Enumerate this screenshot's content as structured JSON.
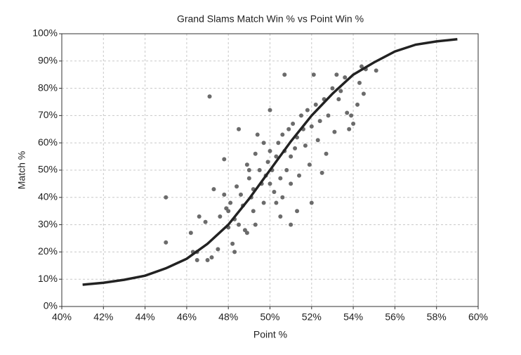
{
  "chart_data": {
    "type": "scatter",
    "title": "Grand Slams Match Win % vs Point Win %",
    "xlabel": "Point %",
    "ylabel": "Match %",
    "xlim": [
      40,
      60
    ],
    "ylim": [
      0,
      100
    ],
    "grid": true,
    "xticks": [
      {
        "value": 40,
        "label": "40%"
      },
      {
        "value": 42,
        "label": "42%"
      },
      {
        "value": 44,
        "label": "44%"
      },
      {
        "value": 46,
        "label": "46%"
      },
      {
        "value": 48,
        "label": "48%"
      },
      {
        "value": 50,
        "label": "50%"
      },
      {
        "value": 52,
        "label": "52%"
      },
      {
        "value": 54,
        "label": "54%"
      },
      {
        "value": 56,
        "label": "56%"
      },
      {
        "value": 58,
        "label": "58%"
      },
      {
        "value": 60,
        "label": "60%"
      }
    ],
    "yticks": [
      {
        "value": 0,
        "label": "0%"
      },
      {
        "value": 10,
        "label": "10%"
      },
      {
        "value": 20,
        "label": "20%"
      },
      {
        "value": 30,
        "label": "30%"
      },
      {
        "value": 40,
        "label": "40%"
      },
      {
        "value": 50,
        "label": "50%"
      },
      {
        "value": 60,
        "label": "60%"
      },
      {
        "value": 70,
        "label": "70%"
      },
      {
        "value": 80,
        "label": "80%"
      },
      {
        "value": 90,
        "label": "90%"
      },
      {
        "value": 100,
        "label": "100%"
      }
    ],
    "series": [
      {
        "type": "scatter",
        "color": "#6b6b6b",
        "x": [
          45,
          45,
          46.2,
          46.3,
          46.5,
          46.5,
          46.6,
          46.9,
          47,
          47.1,
          47.2,
          47.3,
          47.5,
          47.6,
          47.8,
          47.8,
          47.9,
          48,
          48,
          48.1,
          48.2,
          48.3,
          48.3,
          48.4,
          48.5,
          48.5,
          48.6,
          48.7,
          48.8,
          48.9,
          49,
          49,
          49.1,
          49.2,
          49.3,
          49.3,
          49.4,
          49.5,
          49.6,
          49.7,
          49.8,
          49.9,
          50,
          50,
          50,
          50.1,
          50.2,
          50.3,
          50.3,
          50.4,
          50.5,
          50.5,
          50.6,
          50.7,
          50.7,
          50.8,
          50.9,
          51,
          51,
          51,
          51.1,
          51.2,
          51.3,
          51.4,
          51.5,
          51.6,
          51.7,
          51.8,
          51.9,
          52,
          52.1,
          52.2,
          52.3,
          52.4,
          52.5,
          52.6,
          52.7,
          52.8,
          53,
          53.1,
          53.2,
          53.3,
          53.4,
          53.6,
          53.7,
          53.8,
          53.9,
          54,
          54.2,
          54.3,
          54.4,
          54.5,
          54.6,
          55.1,
          52,
          51.3,
          50.6,
          49.7,
          48.9,
          49.2
        ],
        "values": [
          40,
          23.5,
          27,
          20,
          20,
          17,
          33,
          31,
          17,
          77,
          18,
          43,
          21,
          33,
          54,
          41,
          36,
          35,
          29,
          38,
          23,
          20,
          32,
          44,
          65,
          30,
          41,
          37,
          28,
          27,
          47,
          50,
          40,
          43,
          56,
          30,
          63,
          50,
          45,
          38,
          48,
          53,
          72,
          57,
          45,
          50,
          42,
          55,
          38,
          60,
          33,
          47,
          63,
          85,
          57,
          50,
          65,
          30,
          55,
          45,
          67,
          58,
          62,
          48,
          70,
          65,
          59,
          72,
          52,
          66,
          85,
          74,
          61,
          68,
          49,
          76,
          56,
          70,
          80,
          64,
          85,
          76,
          79,
          84,
          71,
          65,
          70,
          67,
          74,
          82,
          88,
          78,
          87,
          86.5,
          38,
          35,
          40,
          60,
          52,
          35
        ]
      },
      {
        "type": "line",
        "color": "#222222",
        "x": [
          41,
          42,
          43,
          44,
          45,
          46,
          47,
          48,
          49,
          50,
          51,
          52,
          53,
          54,
          55,
          56,
          57,
          58,
          59
        ],
        "values": [
          8,
          8.7,
          9.8,
          11.3,
          14,
          17.5,
          23,
          30,
          39.5,
          50,
          60.5,
          70,
          78,
          85,
          89.5,
          93.5,
          96,
          97.2,
          98
        ]
      }
    ]
  }
}
